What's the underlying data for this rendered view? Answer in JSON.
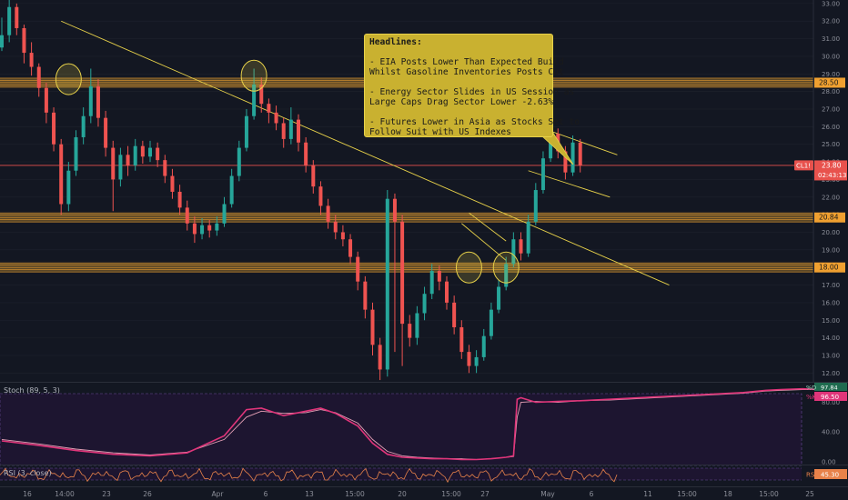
{
  "chart_data": {
    "type": "candlestick",
    "instrument": "CL1!",
    "price_axis": {
      "ylim": [
        11.5,
        33.2
      ],
      "ticks": [
        "33.00",
        "32.00",
        "31.00",
        "30.00",
        "29.00",
        "28.00",
        "27.00",
        "26.00",
        "25.00",
        "24.00",
        "23.00",
        "22.00",
        "21.00",
        "20.00",
        "19.00",
        "18.00",
        "17.00",
        "16.00",
        "15.00",
        "14.00",
        "13.00",
        "12.00"
      ],
      "tick_values": [
        33,
        32,
        31,
        30,
        29,
        28,
        27,
        26,
        25,
        24,
        23,
        22,
        21,
        20,
        19,
        18,
        17,
        16,
        15,
        14,
        13,
        12
      ]
    },
    "last_price": {
      "label": "CL1!",
      "value": 23.8,
      "text": "23.80",
      "countdown": "02:43:13"
    },
    "levels": [
      {
        "value": 28.5,
        "text": "28.50"
      },
      {
        "value": 20.84,
        "text": "20.84"
      },
      {
        "value": 18.0,
        "text": "18.00"
      }
    ],
    "time_axis": {
      "labels": [
        "16",
        "14:00",
        "23",
        "26",
        "Apr",
        "6",
        "13",
        "15:00",
        "20",
        "15:00",
        "27",
        "May",
        "6",
        "11",
        "15:00",
        "18",
        "15:00",
        "25"
      ]
    },
    "candles": [
      [
        0,
        30.5,
        31.2,
        32.2,
        30.3
      ],
      [
        1,
        31.2,
        32.8,
        33.2,
        30.8
      ],
      [
        2,
        32.8,
        31.6,
        33.0,
        31.2
      ],
      [
        3,
        31.6,
        30.2,
        31.8,
        29.6
      ],
      [
        4,
        30.2,
        29.4,
        30.8,
        28.9
      ],
      [
        5,
        29.4,
        28.2,
        29.6,
        27.7
      ],
      [
        6,
        28.2,
        26.8,
        28.5,
        26.2
      ],
      [
        7,
        26.8,
        25.0,
        27.1,
        24.6
      ],
      [
        8,
        25.0,
        21.6,
        25.3,
        21.0
      ],
      [
        9,
        21.6,
        23.5,
        24.0,
        21.2
      ],
      [
        10,
        23.5,
        25.4,
        25.8,
        23.2
      ],
      [
        11,
        25.4,
        26.6,
        27.1,
        25.0
      ],
      [
        12,
        26.6,
        28.3,
        29.3,
        26.2
      ],
      [
        13,
        28.3,
        26.5,
        28.7,
        26.0
      ],
      [
        14,
        26.5,
        24.8,
        26.9,
        24.3
      ],
      [
        15,
        24.8,
        23.0,
        25.2,
        21.2
      ],
      [
        16,
        23.0,
        24.4,
        24.8,
        22.6
      ],
      [
        17,
        24.4,
        23.8,
        24.9,
        23.2
      ],
      [
        18,
        23.8,
        24.9,
        25.3,
        23.5
      ],
      [
        19,
        24.9,
        24.3,
        25.2,
        23.9
      ],
      [
        20,
        24.3,
        24.8,
        25.2,
        24.0
      ],
      [
        21,
        24.8,
        24.1,
        25.1,
        23.7
      ],
      [
        22,
        24.1,
        23.2,
        24.4,
        22.8
      ],
      [
        23,
        23.2,
        22.3,
        23.6,
        21.9
      ],
      [
        24,
        22.3,
        21.4,
        22.7,
        21.0
      ],
      [
        25,
        21.4,
        20.5,
        21.8,
        20.1
      ],
      [
        26,
        20.5,
        19.9,
        20.9,
        19.4
      ],
      [
        27,
        19.9,
        20.4,
        20.8,
        19.6
      ],
      [
        28,
        20.4,
        20.1,
        20.7,
        19.7
      ],
      [
        29,
        20.1,
        20.5,
        20.9,
        19.8
      ],
      [
        30,
        20.5,
        21.6,
        22.0,
        20.3
      ],
      [
        31,
        21.6,
        23.2,
        23.6,
        21.4
      ],
      [
        32,
        23.2,
        24.8,
        25.2,
        22.9
      ],
      [
        33,
        24.8,
        26.6,
        27.0,
        24.6
      ],
      [
        34,
        26.6,
        28.4,
        29.3,
        26.4
      ],
      [
        35,
        28.4,
        27.3,
        28.8,
        26.8
      ],
      [
        36,
        27.3,
        26.8,
        27.6,
        26.2
      ],
      [
        37,
        26.8,
        26.2,
        27.2,
        25.8
      ],
      [
        38,
        26.2,
        25.3,
        26.5,
        24.8
      ],
      [
        39,
        25.3,
        26.4,
        27.1,
        25.0
      ],
      [
        40,
        26.4,
        25.1,
        26.7,
        24.6
      ],
      [
        41,
        25.1,
        23.8,
        25.4,
        23.4
      ],
      [
        42,
        23.8,
        22.6,
        24.1,
        22.2
      ],
      [
        43,
        22.6,
        21.5,
        22.9,
        21.0
      ],
      [
        44,
        21.5,
        20.6,
        21.9,
        20.2
      ],
      [
        45,
        20.6,
        20.0,
        21.0,
        19.6
      ],
      [
        46,
        20.0,
        19.6,
        20.4,
        19.2
      ],
      [
        47,
        19.6,
        18.6,
        19.9,
        18.2
      ],
      [
        48,
        18.6,
        17.2,
        18.9,
        16.7
      ],
      [
        49,
        17.2,
        15.6,
        17.5,
        15.1
      ],
      [
        50,
        15.6,
        13.6,
        16.0,
        13.0
      ],
      [
        51,
        13.6,
        12.2,
        14.0,
        11.6
      ],
      [
        52,
        12.2,
        21.9,
        22.4,
        11.8
      ],
      [
        53,
        21.9,
        20.6,
        22.2,
        13.2
      ],
      [
        54,
        20.6,
        14.8,
        21.0,
        12.4
      ],
      [
        55,
        14.8,
        14.0,
        15.3,
        13.5
      ],
      [
        56,
        14.0,
        15.4,
        15.8,
        13.6
      ],
      [
        57,
        15.4,
        16.5,
        16.9,
        15.0
      ],
      [
        58,
        16.5,
        17.8,
        18.2,
        16.2
      ],
      [
        59,
        17.8,
        17.2,
        18.1,
        16.7
      ],
      [
        60,
        17.2,
        16.0,
        17.5,
        15.6
      ],
      [
        61,
        16.0,
        14.6,
        16.4,
        14.2
      ],
      [
        62,
        14.6,
        13.2,
        15.0,
        12.8
      ],
      [
        63,
        13.2,
        12.4,
        13.6,
        12.0
      ],
      [
        64,
        12.4,
        12.9,
        13.3,
        12.0
      ],
      [
        65,
        12.9,
        14.1,
        14.5,
        12.7
      ],
      [
        66,
        14.1,
        15.6,
        16.0,
        13.9
      ],
      [
        67,
        15.6,
        16.9,
        17.3,
        15.4
      ],
      [
        68,
        16.9,
        18.2,
        18.6,
        16.7
      ],
      [
        69,
        18.2,
        19.6,
        20.0,
        18.0
      ],
      [
        70,
        19.6,
        18.8,
        20.0,
        18.4
      ],
      [
        71,
        18.8,
        20.6,
        21.0,
        18.6
      ],
      [
        72,
        20.6,
        22.4,
        22.8,
        20.4
      ],
      [
        73,
        22.4,
        24.2,
        24.6,
        22.2
      ],
      [
        74,
        24.2,
        25.6,
        26.0,
        24.0
      ],
      [
        75,
        25.6,
        24.6,
        25.9,
        24.2
      ],
      [
        76,
        24.6,
        23.4,
        24.9,
        23.0
      ],
      [
        77,
        23.4,
        25.1,
        25.5,
        23.2
      ],
      [
        78,
        25.1,
        23.8,
        25.3,
        23.4
      ]
    ],
    "trendlines": [
      {
        "from": [
          8,
          32.0
        ],
        "to": [
          90,
          17.0
        ]
      },
      {
        "from": [
          73,
          25.9
        ],
        "to": [
          83,
          24.4
        ]
      },
      {
        "from": [
          71,
          23.5
        ],
        "to": [
          82,
          22.0
        ]
      },
      {
        "from": [
          63,
          21.1
        ],
        "to": [
          68,
          19.5
        ]
      },
      {
        "from": [
          62,
          20.5
        ],
        "to": [
          68,
          18.4
        ]
      }
    ],
    "highlight_circles": [
      {
        "x": 9,
        "y": 28.7
      },
      {
        "x": 34,
        "y": 28.9
      },
      {
        "x": 63,
        "y": 18.0
      },
      {
        "x": 68,
        "y": 18.0
      }
    ],
    "annotation": {
      "lines": [
        "Headlines:",
        "",
        "- EIA Posts Lower Than Expected Build",
        "Whilst Gasoline Inventories Posts Cut",
        "",
        "- Energy Sector Slides in US Session as",
        "Large Caps Drag Sector Lower -2.63%",
        "",
        "- Futures Lower in Asia as Stocks Set to",
        "Follow Suit with US Indexes"
      ]
    },
    "stoch": {
      "label": "Stoch (89, 5, 3)",
      "ylim": [
        -5,
        105
      ],
      "ticks": [
        "80.00",
        "40.00",
        "0.00"
      ],
      "tick_values": [
        80,
        40,
        0
      ],
      "k_label": "%K",
      "k_value": "96.50",
      "d_label": "%D",
      "d_value": "97.84",
      "k": [
        [
          0,
          28
        ],
        [
          5,
          22
        ],
        [
          10,
          15
        ],
        [
          15,
          10
        ],
        [
          20,
          8
        ],
        [
          25,
          12
        ],
        [
          30,
          35
        ],
        [
          33,
          70
        ],
        [
          35,
          72
        ],
        [
          38,
          62
        ],
        [
          41,
          68
        ],
        [
          43,
          72
        ],
        [
          45,
          65
        ],
        [
          48,
          48
        ],
        [
          50,
          25
        ],
        [
          52,
          10
        ],
        [
          54,
          6
        ],
        [
          56,
          5
        ],
        [
          58,
          4
        ],
        [
          60,
          4
        ],
        [
          62,
          3
        ],
        [
          64,
          3
        ],
        [
          66,
          4
        ],
        [
          67,
          5
        ],
        [
          68,
          6
        ],
        [
          69,
          8
        ],
        [
          69.5,
          84
        ],
        [
          70,
          86
        ],
        [
          72,
          80
        ],
        [
          75,
          81
        ],
        [
          78,
          82
        ],
        [
          82,
          84
        ],
        [
          88,
          87
        ],
        [
          94,
          90
        ],
        [
          100,
          93
        ],
        [
          103,
          96
        ],
        [
          105,
          97
        ],
        [
          108,
          98
        ],
        [
          110,
          97
        ]
      ],
      "d": [
        [
          0,
          30
        ],
        [
          5,
          24
        ],
        [
          10,
          17
        ],
        [
          15,
          12
        ],
        [
          20,
          9
        ],
        [
          25,
          13
        ],
        [
          30,
          30
        ],
        [
          33,
          60
        ],
        [
          35,
          68
        ],
        [
          38,
          65
        ],
        [
          41,
          66
        ],
        [
          43,
          70
        ],
        [
          45,
          66
        ],
        [
          48,
          52
        ],
        [
          50,
          30
        ],
        [
          52,
          14
        ],
        [
          54,
          8
        ],
        [
          56,
          6
        ],
        [
          58,
          5
        ],
        [
          60,
          4
        ],
        [
          62,
          4
        ],
        [
          64,
          3
        ],
        [
          66,
          4
        ],
        [
          67,
          5
        ],
        [
          68,
          6
        ],
        [
          69,
          7
        ],
        [
          69.5,
          60
        ],
        [
          70,
          80
        ],
        [
          72,
          81
        ],
        [
          75,
          80
        ],
        [
          78,
          82
        ],
        [
          82,
          83
        ],
        [
          88,
          86
        ],
        [
          94,
          89
        ],
        [
          100,
          92
        ],
        [
          103,
          95
        ],
        [
          105,
          96
        ],
        [
          108,
          97
        ],
        [
          110,
          97
        ]
      ]
    },
    "rsi": {
      "label": "RSI (3, close)",
      "ylim": [
        0,
        100
      ],
      "value": "45.30",
      "upper_band": 70,
      "lower_band": 30
    }
  }
}
